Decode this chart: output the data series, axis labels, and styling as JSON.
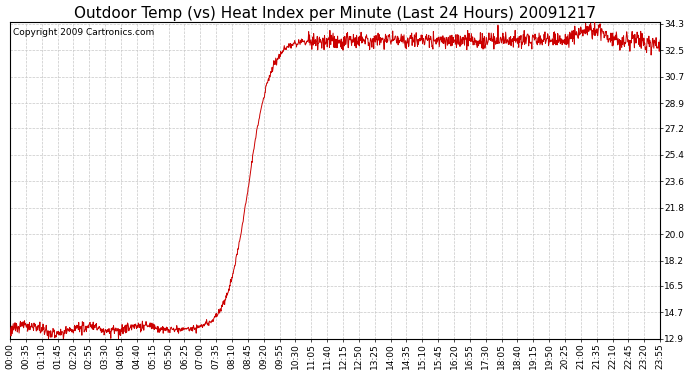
{
  "title": "Outdoor Temp (vs) Heat Index per Minute (Last 24 Hours) 20091217",
  "copyright_text": "Copyright 2009 Cartronics.com",
  "line_color": "#cc0000",
  "background_color": "#ffffff",
  "plot_bg_color": "#ffffff",
  "grid_color": "#c8c8c8",
  "yticks": [
    12.9,
    14.7,
    16.5,
    18.2,
    20.0,
    21.8,
    23.6,
    25.4,
    27.2,
    28.9,
    30.7,
    32.5,
    34.3
  ],
  "ymin": 12.9,
  "ymax": 34.3,
  "xtick_labels": [
    "00:00",
    "00:35",
    "01:10",
    "01:45",
    "02:20",
    "02:55",
    "03:30",
    "04:05",
    "04:40",
    "05:15",
    "05:50",
    "06:25",
    "07:00",
    "07:35",
    "08:10",
    "08:45",
    "09:20",
    "09:55",
    "10:30",
    "11:05",
    "11:40",
    "12:15",
    "12:50",
    "13:25",
    "14:00",
    "14:35",
    "15:10",
    "15:45",
    "16:20",
    "16:55",
    "17:30",
    "18:05",
    "18:40",
    "19:15",
    "19:50",
    "20:25",
    "21:00",
    "21:35",
    "22:10",
    "22:45",
    "23:20",
    "23:55"
  ],
  "title_fontsize": 11,
  "copyright_fontsize": 6.5,
  "tick_fontsize": 6.5,
  "fig_width": 6.9,
  "fig_height": 3.75,
  "dpi": 100
}
